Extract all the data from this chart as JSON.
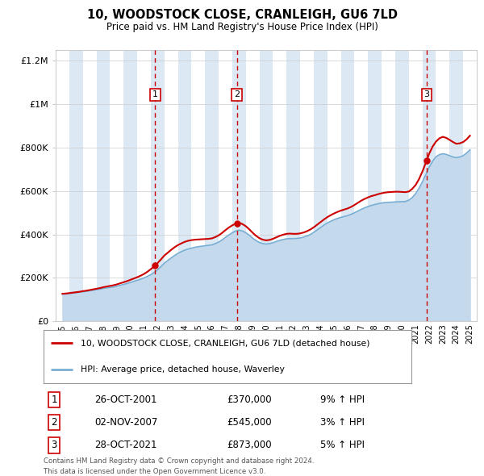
{
  "title": "10, WOODSTOCK CLOSE, CRANLEIGH, GU6 7LD",
  "subtitle": "Price paid vs. HM Land Registry's House Price Index (HPI)",
  "footer_line1": "Contains HM Land Registry data © Crown copyright and database right 2024.",
  "footer_line2": "This data is licensed under the Open Government Licence v3.0.",
  "legend_line1": "10, WOODSTOCK CLOSE, CRANLEIGH, GU6 7LD (detached house)",
  "legend_line2": "HPI: Average price, detached house, Waverley",
  "transactions": [
    {
      "num": 1,
      "date": "26-OCT-2001",
      "price": "£370,000",
      "pct": "9% ↑ HPI",
      "year_x": 2001.82
    },
    {
      "num": 2,
      "date": "02-NOV-2007",
      "price": "£545,000",
      "pct": "3% ↑ HPI",
      "year_x": 2007.84
    },
    {
      "num": 3,
      "date": "28-OCT-2021",
      "price": "£873,000",
      "pct": "5% ↑ HPI",
      "year_x": 2021.82
    }
  ],
  "price_color": "#cc0000",
  "hpi_color": "#7aafd4",
  "hpi_fill_color": "#c5d9ed",
  "vline_color": "#cc0000",
  "bg_color": "#dce9f5",
  "plot_bg": "#ffffff",
  "grid_color": "#cccccc",
  "ylim": [
    0,
    1250000
  ],
  "yticks": [
    0,
    200000,
    400000,
    600000,
    800000,
    1000000,
    1200000
  ],
  "xlim_start": 1994.5,
  "xlim_end": 2025.5,
  "xticks": [
    1995,
    1996,
    1997,
    1998,
    1999,
    2000,
    2001,
    2002,
    2003,
    2004,
    2005,
    2006,
    2007,
    2008,
    2009,
    2010,
    2011,
    2012,
    2013,
    2014,
    2015,
    2016,
    2017,
    2018,
    2019,
    2020,
    2021,
    2022,
    2023,
    2024,
    2025
  ],
  "hpi_years": [
    1995.0,
    1995.25,
    1995.5,
    1995.75,
    1996.0,
    1996.25,
    1996.5,
    1996.75,
    1997.0,
    1997.25,
    1997.5,
    1997.75,
    1998.0,
    1998.25,
    1998.5,
    1998.75,
    1999.0,
    1999.25,
    1999.5,
    1999.75,
    2000.0,
    2000.25,
    2000.5,
    2000.75,
    2001.0,
    2001.25,
    2001.5,
    2001.75,
    2002.0,
    2002.25,
    2002.5,
    2002.75,
    2003.0,
    2003.25,
    2003.5,
    2003.75,
    2004.0,
    2004.25,
    2004.5,
    2004.75,
    2005.0,
    2005.25,
    2005.5,
    2005.75,
    2006.0,
    2006.25,
    2006.5,
    2006.75,
    2007.0,
    2007.25,
    2007.5,
    2007.75,
    2008.0,
    2008.25,
    2008.5,
    2008.75,
    2009.0,
    2009.25,
    2009.5,
    2009.75,
    2010.0,
    2010.25,
    2010.5,
    2010.75,
    2011.0,
    2011.25,
    2011.5,
    2011.75,
    2012.0,
    2012.25,
    2012.5,
    2012.75,
    2013.0,
    2013.25,
    2013.5,
    2013.75,
    2014.0,
    2014.25,
    2014.5,
    2014.75,
    2015.0,
    2015.25,
    2015.5,
    2015.75,
    2016.0,
    2016.25,
    2016.5,
    2016.75,
    2017.0,
    2017.25,
    2017.5,
    2017.75,
    2018.0,
    2018.25,
    2018.5,
    2018.75,
    2019.0,
    2019.25,
    2019.5,
    2019.75,
    2020.0,
    2020.25,
    2020.5,
    2020.75,
    2021.0,
    2021.25,
    2021.5,
    2021.75,
    2022.0,
    2022.25,
    2022.5,
    2022.75,
    2023.0,
    2023.25,
    2023.5,
    2023.75,
    2024.0,
    2024.25,
    2024.5,
    2024.75,
    2025.0
  ],
  "hpi_vals": [
    125000,
    126000,
    128000,
    130000,
    132000,
    134000,
    136000,
    138000,
    141000,
    143000,
    146000,
    148000,
    151000,
    154000,
    156000,
    158000,
    162000,
    166000,
    170000,
    174000,
    179000,
    184000,
    189000,
    194000,
    200000,
    207000,
    215000,
    225000,
    237000,
    252000,
    268000,
    280000,
    292000,
    303000,
    313000,
    321000,
    328000,
    333000,
    337000,
    341000,
    344000,
    346000,
    348000,
    350000,
    352000,
    358000,
    365000,
    375000,
    387000,
    398000,
    408000,
    416000,
    420000,
    416000,
    408000,
    397000,
    383000,
    372000,
    363000,
    358000,
    356000,
    358000,
    362000,
    368000,
    373000,
    377000,
    380000,
    381000,
    381000,
    382000,
    384000,
    388000,
    393000,
    400000,
    410000,
    421000,
    432000,
    443000,
    453000,
    461000,
    468000,
    474000,
    479000,
    483000,
    487000,
    493000,
    500000,
    508000,
    516000,
    523000,
    529000,
    534000,
    538000,
    542000,
    545000,
    547000,
    548000,
    549000,
    550000,
    551000,
    551000,
    552000,
    558000,
    570000,
    588000,
    613000,
    643000,
    675000,
    710000,
    738000,
    758000,
    768000,
    772000,
    769000,
    763000,
    757000,
    754000,
    757000,
    763000,
    775000,
    790000
  ],
  "price_vals": [
    127000,
    128000,
    130000,
    132000,
    134000,
    136000,
    139000,
    141000,
    144000,
    147000,
    150000,
    153000,
    157000,
    160000,
    163000,
    166000,
    170000,
    175000,
    180000,
    185000,
    191000,
    197000,
    203000,
    210000,
    218000,
    228000,
    240000,
    253000,
    268000,
    285000,
    303000,
    316000,
    329000,
    341000,
    351000,
    359000,
    366000,
    371000,
    374000,
    376000,
    377000,
    378000,
    379000,
    380000,
    382000,
    388000,
    396000,
    407000,
    420000,
    432000,
    442000,
    450000,
    454000,
    448000,
    438000,
    424000,
    408000,
    394000,
    383000,
    376000,
    373000,
    375000,
    380000,
    387000,
    394000,
    399000,
    403000,
    404000,
    403000,
    403000,
    405000,
    409000,
    415000,
    423000,
    433000,
    445000,
    457000,
    469000,
    480000,
    489000,
    497000,
    504000,
    510000,
    515000,
    520000,
    527000,
    536000,
    546000,
    556000,
    564000,
    571000,
    577000,
    581000,
    586000,
    590000,
    593000,
    595000,
    596000,
    597000,
    597000,
    596000,
    595000,
    598000,
    610000,
    628000,
    655000,
    690000,
    730000,
    772000,
    805000,
    828000,
    843000,
    850000,
    845000,
    836000,
    826000,
    818000,
    820000,
    826000,
    838000,
    855000
  ]
}
